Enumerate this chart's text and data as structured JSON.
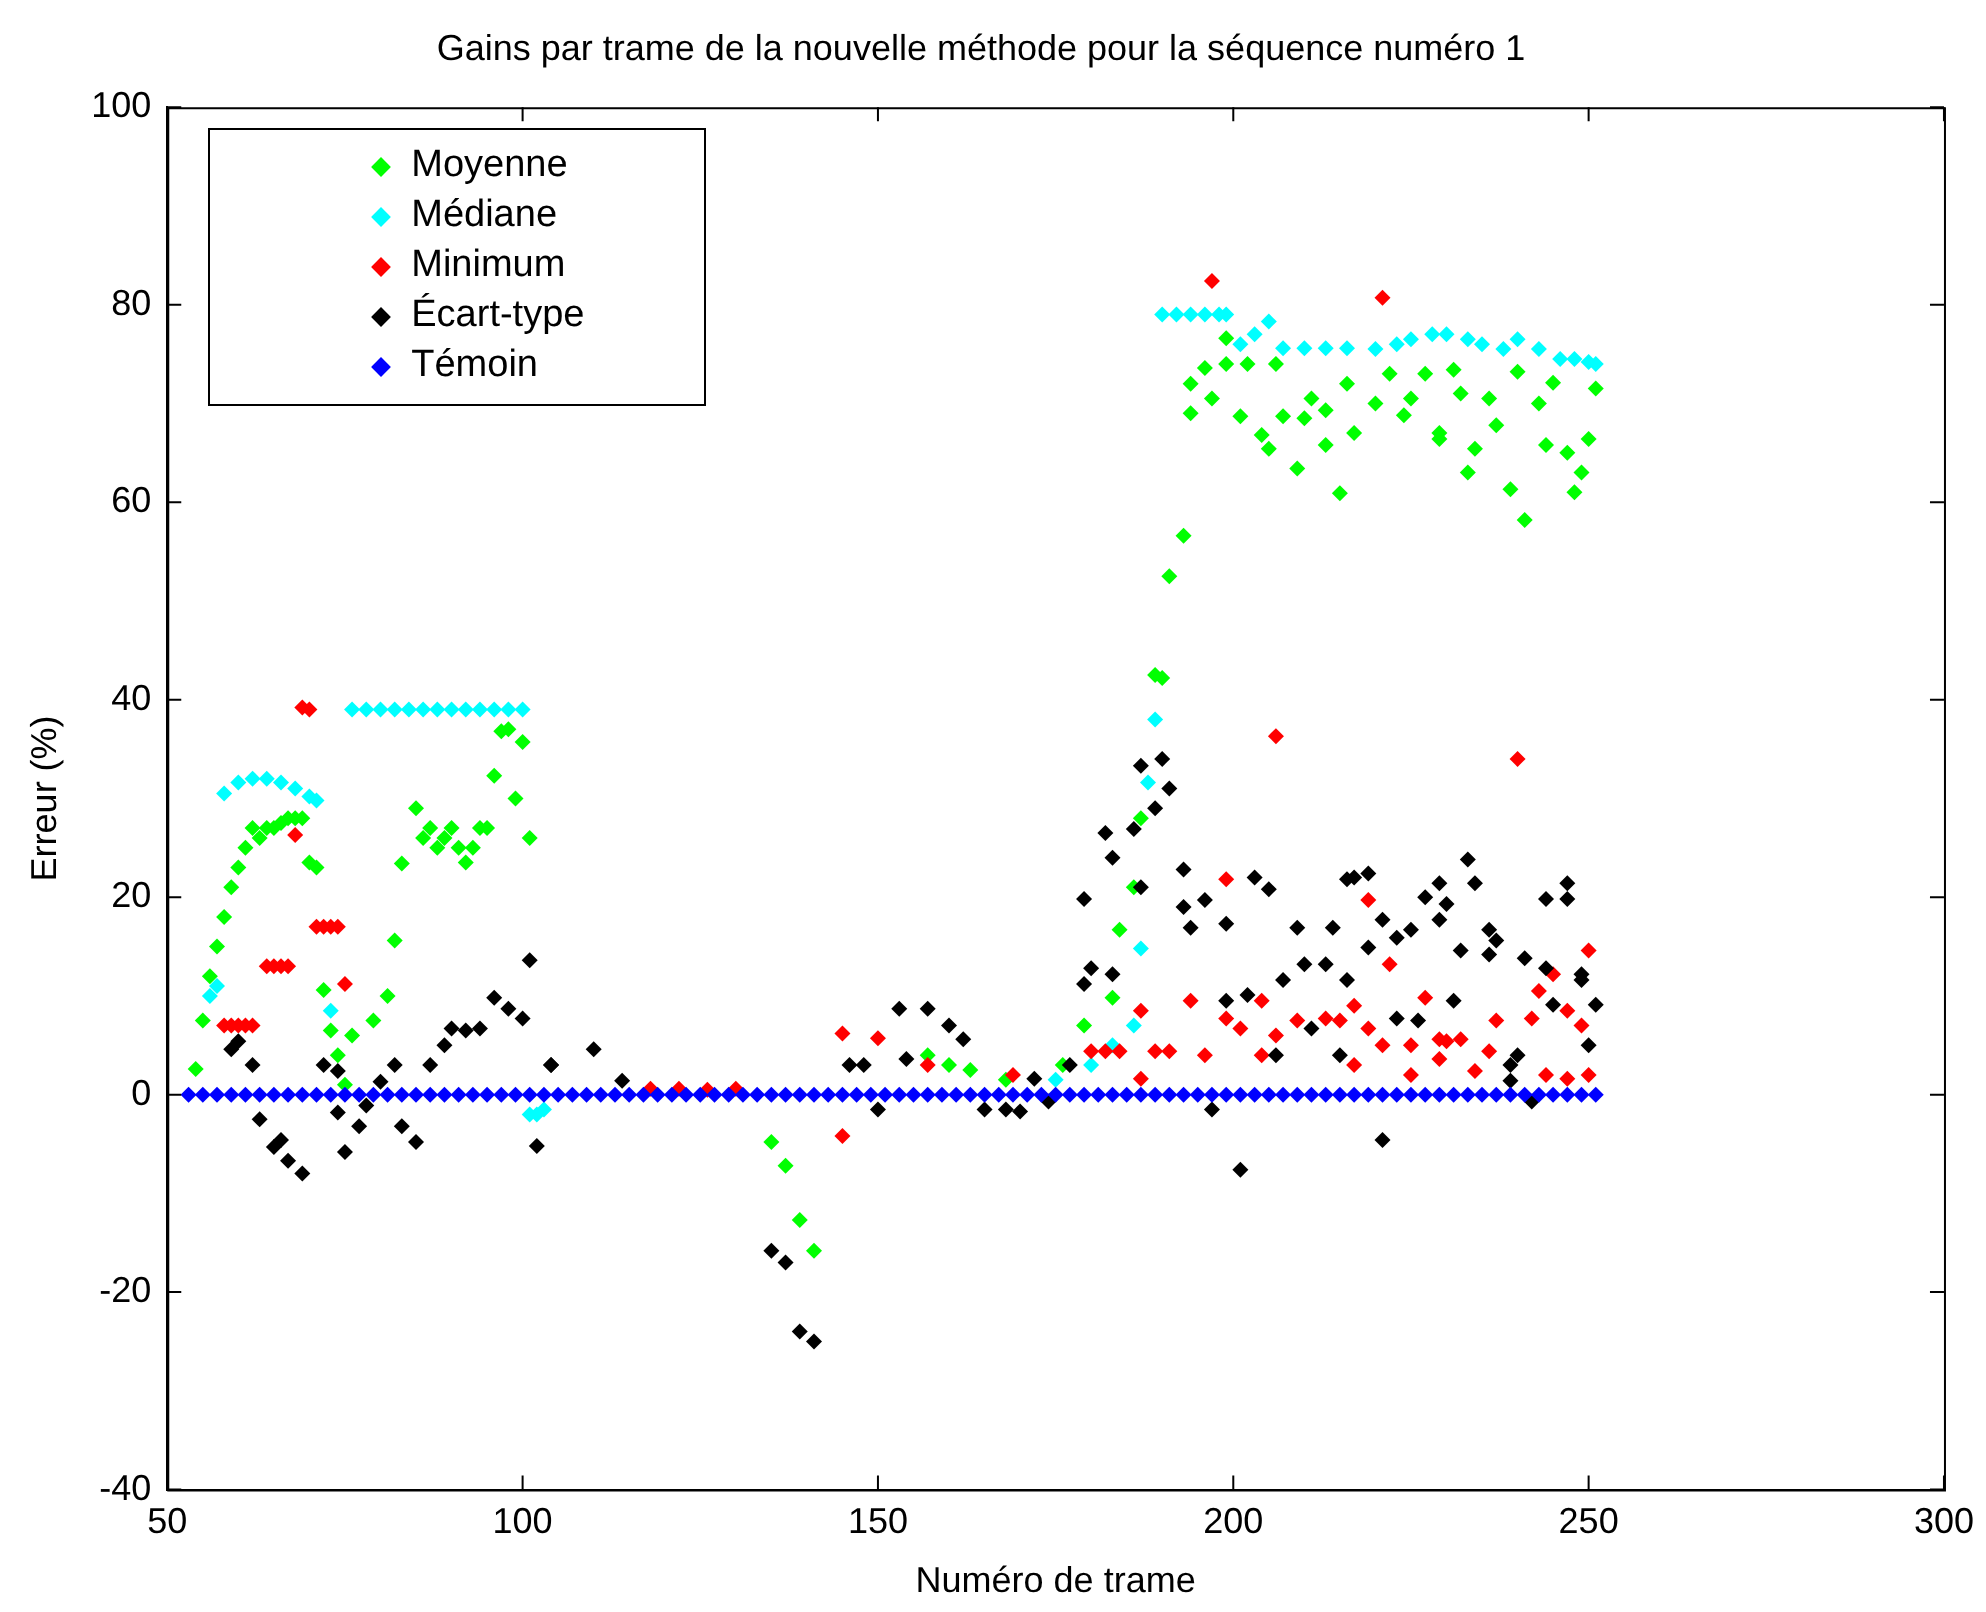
{
  "chart_data": {
    "type": "scatter",
    "title": "Gains par trame de la nouvelle méthode pour la séquence numéro 1",
    "xlabel": "Numéro de trame",
    "ylabel": "Erreur (%)",
    "xlim": [
      50,
      300
    ],
    "xticks": [
      50,
      100,
      150,
      200,
      250,
      300
    ],
    "ylim": [
      -40,
      100
    ],
    "yticks": [
      -40,
      -20,
      0,
      20,
      40,
      60,
      80,
      100
    ],
    "grid": false,
    "legend": "top left",
    "marker": "diamond",
    "series": [
      {
        "name": "Moyenne",
        "color": "#00ff00",
        "x": [
          54,
          55,
          56,
          57,
          58,
          59,
          60,
          61,
          62,
          63,
          64,
          65,
          66,
          67,
          68,
          69,
          70,
          71,
          72,
          73,
          74,
          75,
          76,
          79,
          81,
          82,
          83,
          85,
          86,
          87,
          88,
          89,
          90,
          91,
          92,
          93,
          94,
          95,
          96,
          97,
          98,
          99,
          100,
          101,
          135,
          137,
          139,
          141,
          157,
          160,
          163,
          168,
          176,
          179,
          183,
          184,
          186,
          187,
          189,
          190,
          191,
          193,
          194,
          194,
          196,
          197,
          199,
          199,
          201,
          202,
          204,
          205,
          206,
          207,
          209,
          210,
          211,
          213,
          213,
          215,
          216,
          217,
          220,
          222,
          224,
          225,
          227,
          229,
          229,
          231,
          232,
          233,
          234,
          236,
          237,
          239,
          240,
          241,
          243,
          244,
          245,
          247,
          248,
          249,
          250,
          251
        ],
        "values": [
          2.6,
          7.5,
          12,
          15,
          18,
          21,
          23,
          25,
          27,
          26,
          27,
          27,
          27.5,
          28,
          28,
          28,
          23.5,
          23,
          10.6,
          6.5,
          4,
          1,
          6,
          7.5,
          10,
          15.6,
          23.4,
          29,
          26,
          27,
          25,
          26,
          27,
          25,
          23.5,
          25,
          27,
          27,
          32.3,
          36.8,
          37,
          30,
          35.7,
          26,
          -4.8,
          -7.2,
          -12.7,
          -15.8,
          4,
          3,
          2.5,
          1.5,
          3,
          7,
          9.8,
          16.7,
          21,
          28,
          42.5,
          42.2,
          52.5,
          56.6,
          72,
          69,
          73.6,
          70.5,
          74,
          76.6,
          68.7,
          74,
          66.8,
          65.4,
          74,
          68.7,
          63.4,
          68.5,
          70.5,
          69.3,
          65.8,
          60.9,
          72,
          67,
          70,
          73,
          68.8,
          70.5,
          73,
          67,
          66.4,
          73.4,
          71,
          63,
          65.4,
          70.5,
          67.8,
          61.3,
          73.2,
          58.2,
          70,
          65.8,
          72.1,
          65,
          61,
          63,
          66.4,
          71.5
        ]
      },
      {
        "name": "Médiane",
        "color": "#00ffff",
        "x": [
          56,
          57,
          58,
          60,
          62,
          64,
          66,
          68,
          70,
          71,
          73,
          76,
          78,
          80,
          82,
          84,
          86,
          88,
          90,
          92,
          94,
          96,
          98,
          100,
          101,
          102,
          103,
          175,
          180,
          183,
          186,
          187,
          188,
          189,
          190,
          192,
          194,
          196,
          198,
          199,
          201,
          203,
          205,
          207,
          210,
          213,
          216,
          220,
          223,
          225,
          228,
          230,
          233,
          235,
          238,
          240,
          243,
          246,
          248,
          250,
          251
        ],
        "values": [
          10,
          11,
          30.5,
          31.6,
          32,
          32,
          31.6,
          31,
          30.2,
          29.8,
          8.5,
          39,
          39,
          39,
          39,
          39,
          39,
          39,
          39,
          39,
          39,
          39,
          39,
          39,
          -2,
          -2,
          -1.5,
          1.5,
          3,
          5,
          7,
          14.8,
          31.6,
          38,
          79,
          79,
          79,
          79,
          79,
          79,
          76,
          77,
          78.3,
          75.6,
          75.6,
          75.6,
          75.6,
          75.5,
          76,
          76.5,
          77,
          77,
          76.5,
          76,
          75.5,
          76.5,
          75.5,
          74.5,
          74.5,
          74.2,
          74
        ]
      },
      {
        "name": "Minimum",
        "color": "#ff0000",
        "x": [
          58,
          59,
          60,
          61,
          62,
          64,
          65,
          66,
          67,
          68,
          69,
          70,
          71,
          72,
          73,
          74,
          75,
          118,
          122,
          126,
          130,
          145,
          145,
          150,
          157,
          169,
          180,
          182,
          184,
          187,
          187,
          189,
          191,
          194,
          196,
          197,
          199,
          199,
          201,
          204,
          204,
          206,
          206,
          209,
          213,
          215,
          217,
          217,
          219,
          219,
          221,
          221,
          222,
          225,
          225,
          227,
          229,
          229,
          230,
          232,
          234,
          236,
          237,
          240,
          242,
          243,
          244,
          245,
          247,
          247,
          249,
          250,
          250
        ],
        "values": [
          7,
          7,
          7,
          7,
          7,
          13,
          13,
          13,
          13,
          26.3,
          39.2,
          39,
          17,
          17,
          17,
          17,
          11.2,
          0.6,
          0.6,
          0.5,
          0.6,
          6.2,
          -4.2,
          5.7,
          3,
          2,
          4.4,
          4.4,
          4.4,
          8.5,
          1.6,
          4.4,
          4.4,
          9.5,
          4,
          82.4,
          7.7,
          21.8,
          6.7,
          9.5,
          4,
          36.3,
          6,
          7.5,
          7.7,
          7.5,
          3,
          9,
          6.7,
          19.7,
          5,
          80.7,
          13.2,
          5,
          2,
          9.8,
          5.6,
          3.6,
          5.4,
          5.6,
          2.4,
          4.4,
          7.5,
          34,
          7.7,
          10.5,
          2,
          12.2,
          8.5,
          1.6,
          7,
          14.6,
          2
        ]
      },
      {
        "name": "Écart-type",
        "color": "#000000",
        "x": [
          59,
          60,
          62,
          63,
          65,
          66,
          67,
          69,
          72,
          74,
          74,
          75,
          77,
          78,
          80,
          82,
          83,
          85,
          87,
          89,
          90,
          92,
          94,
          96,
          98,
          100,
          101,
          102,
          104,
          104,
          110,
          114,
          135,
          137,
          139,
          141,
          146,
          148,
          150,
          153,
          154,
          157,
          160,
          162,
          165,
          168,
          170,
          172,
          174,
          177,
          179,
          179,
          180,
          182,
          183,
          183,
          186,
          187,
          187,
          189,
          190,
          191,
          193,
          193,
          194,
          196,
          197,
          199,
          199,
          201,
          202,
          203,
          205,
          206,
          207,
          209,
          210,
          211,
          213,
          214,
          215,
          216,
          216,
          217,
          219,
          219,
          221,
          221,
          223,
          223,
          225,
          226,
          227,
          229,
          230,
          229,
          231,
          232,
          233,
          234,
          236,
          236,
          237,
          239,
          239,
          240,
          241,
          242,
          244,
          244,
          245,
          247,
          247,
          249,
          249,
          250,
          251
        ],
        "values": [
          4.6,
          5.4,
          3,
          -2.5,
          -5.3,
          -4.6,
          -6.7,
          -8,
          3,
          2.4,
          -1.8,
          -5.8,
          -3.2,
          -1.1,
          1.3,
          3,
          -3.2,
          -4.8,
          3,
          5,
          6.7,
          6.5,
          6.7,
          9.8,
          8.7,
          7.7,
          13.6,
          -5.2,
          3,
          3,
          4.6,
          1.4,
          -15.8,
          -17,
          -24,
          -25,
          3,
          3,
          -1.5,
          8.7,
          3.6,
          8.7,
          7,
          5.6,
          -1.5,
          -1.5,
          -1.7,
          1.6,
          -0.7,
          3,
          19.8,
          11.2,
          12.8,
          26.5,
          24,
          12.2,
          26.9,
          21,
          33.3,
          29,
          34,
          31,
          22.8,
          19,
          16.9,
          19.7,
          -1.5,
          17.3,
          9.5,
          -7.6,
          10.1,
          22,
          20.8,
          4,
          11.6,
          16.9,
          13.2,
          6.7,
          13.2,
          16.9,
          4,
          21.8,
          11.6,
          22,
          22.4,
          14.9,
          17.7,
          -4.6,
          15.9,
          7.7,
          16.7,
          7.5,
          20,
          21.4,
          19.3,
          17.7,
          9.5,
          14.6,
          23.8,
          21.4,
          16.7,
          14.2,
          15.6,
          3,
          1.4,
          4,
          13.8,
          -0.7,
          12.8,
          19.8,
          9.1,
          21.4,
          19.8,
          12.2,
          11.6,
          5,
          9.1
        ]
      },
      {
        "name": "Témoin",
        "color": "#0000ff",
        "x": [
          53,
          55,
          57,
          59,
          61,
          63,
          65,
          67,
          69,
          71,
          73,
          75,
          77,
          79,
          81,
          83,
          85,
          87,
          89,
          91,
          93,
          95,
          97,
          99,
          101,
          103,
          105,
          107,
          109,
          111,
          113,
          115,
          117,
          119,
          121,
          123,
          125,
          127,
          129,
          131,
          133,
          135,
          137,
          139,
          141,
          143,
          145,
          147,
          149,
          151,
          153,
          155,
          157,
          159,
          161,
          163,
          165,
          167,
          169,
          171,
          173,
          175,
          177,
          179,
          181,
          183,
          185,
          187,
          189,
          191,
          193,
          195,
          197,
          199,
          201,
          203,
          205,
          207,
          209,
          211,
          213,
          215,
          217,
          219,
          221,
          223,
          225,
          227,
          229,
          231,
          233,
          235,
          237,
          239,
          241,
          243,
          245,
          247,
          249,
          251
        ],
        "values": [
          0,
          0,
          0,
          0,
          0,
          0,
          0,
          0,
          0,
          0,
          0,
          0,
          0,
          0,
          0,
          0,
          0,
          0,
          0,
          0,
          0,
          0,
          0,
          0,
          0,
          0,
          0,
          0,
          0,
          0,
          0,
          0,
          0,
          0,
          0,
          0,
          0,
          0,
          0,
          0,
          0,
          0,
          0,
          0,
          0,
          0,
          0,
          0,
          0,
          0,
          0,
          0,
          0,
          0,
          0,
          0,
          0,
          0,
          0,
          0,
          0,
          0,
          0,
          0,
          0,
          0,
          0,
          0,
          0,
          0,
          0,
          0,
          0,
          0,
          0,
          0,
          0,
          0,
          0,
          0,
          0,
          0,
          0,
          0,
          0,
          0,
          0,
          0,
          0,
          0,
          0,
          0,
          0,
          0,
          0,
          0,
          0,
          0,
          0,
          0
        ]
      }
    ]
  }
}
